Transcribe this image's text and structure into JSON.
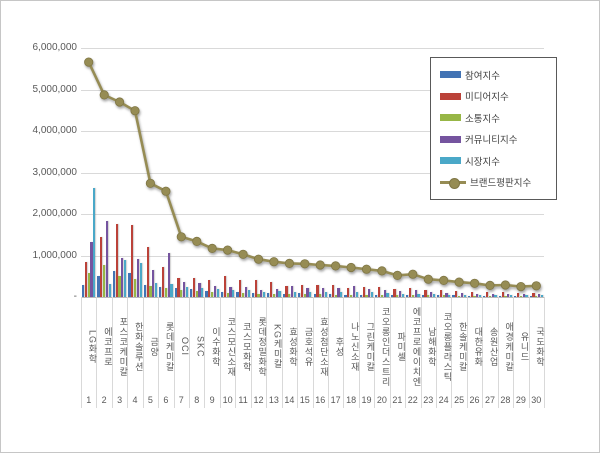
{
  "chart_data": {
    "type": "bar",
    "subtype": "grouped-bars-with-line-overlay",
    "title": "",
    "categories": [
      "LG화학",
      "에코프로",
      "포스코케미칼",
      "한화솔루션",
      "금양",
      "롯데케미칼",
      "OCI",
      "SKC",
      "이수화학",
      "코스모신소재",
      "코스모화학",
      "롯데정밀화학",
      "KG케미칼",
      "효성화학",
      "금호석유",
      "효성첨단소재",
      "후성",
      "나노신소재",
      "그린케미칼",
      "코오롱인더스트리",
      "파미셀",
      "에코프로에이치엔",
      "남해화학",
      "코오롱플라스틱",
      "한솔케미칼",
      "대한유화",
      "송원산업",
      "애경케미칼",
      "유니드",
      "국도화학"
    ],
    "ranks": [
      "1",
      "2",
      "3",
      "4",
      "5",
      "6",
      "7",
      "8",
      "9",
      "10",
      "11",
      "12",
      "13",
      "14",
      "15",
      "16",
      "17",
      "18",
      "19",
      "20",
      "21",
      "22",
      "23",
      "24",
      "25",
      "26",
      "27",
      "28",
      "29",
      "30"
    ],
    "series": [
      {
        "name": "참여지수",
        "type": "bar",
        "color": "#4273b4",
        "values": [
          280000,
          500000,
          630000,
          590000,
          300000,
          250000,
          220000,
          200000,
          150000,
          120000,
          110000,
          100000,
          90000,
          80000,
          90000,
          80000,
          70000,
          60000,
          60000,
          60000,
          50000,
          50000,
          40000,
          40000,
          40000,
          30000,
          30000,
          30000,
          20000,
          30000
        ]
      },
      {
        "name": "미디어지수",
        "type": "bar",
        "color": "#bb4239",
        "values": [
          840000,
          1450000,
          1760000,
          1740000,
          1200000,
          720000,
          470000,
          450000,
          420000,
          500000,
          400000,
          420000,
          350000,
          270000,
          300000,
          280000,
          280000,
          220000,
          240000,
          240000,
          200000,
          210000,
          170000,
          160000,
          140000,
          130000,
          110000,
          110000,
          100000,
          100000
        ]
      },
      {
        "name": "소통지수",
        "type": "bar",
        "color": "#97b646",
        "values": [
          590000,
          760000,
          500000,
          440000,
          260000,
          220000,
          160000,
          150000,
          130000,
          100000,
          100000,
          80000,
          80000,
          70000,
          80000,
          70000,
          60000,
          60000,
          60000,
          50000,
          50000,
          50000,
          40000,
          40000,
          30000,
          30000,
          30000,
          30000,
          20000,
          30000
        ]
      },
      {
        "name": "커뮤니티지수",
        "type": "bar",
        "color": "#75549f",
        "values": [
          1320000,
          1840000,
          930000,
          910000,
          640000,
          1050000,
          350000,
          330000,
          270000,
          230000,
          240000,
          180000,
          190000,
          270000,
          210000,
          220000,
          220000,
          260000,
          200000,
          180000,
          140000,
          160000,
          110000,
          100000,
          90000,
          80000,
          70000,
          80000,
          70000,
          70000
        ]
      },
      {
        "name": "시장지수",
        "type": "bar",
        "color": "#4aa8c8",
        "values": [
          2630000,
          320000,
          880000,
          810000,
          340000,
          310000,
          250000,
          210000,
          200000,
          180000,
          180000,
          130000,
          140000,
          120000,
          120000,
          120000,
          120000,
          110000,
          110000,
          100000,
          80000,
          80000,
          70000,
          60000,
          60000,
          60000,
          40000,
          40000,
          40000,
          40000
        ]
      },
      {
        "name": "브랜드평판지수",
        "type": "line",
        "color": "#968c54",
        "marker_stroke": "#7f7645",
        "values": [
          5660000,
          4870000,
          4700000,
          4490000,
          2740000,
          2550000,
          1450000,
          1340000,
          1170000,
          1130000,
          1030000,
          910000,
          850000,
          810000,
          800000,
          770000,
          750000,
          710000,
          670000,
          630000,
          520000,
          550000,
          430000,
          400000,
          360000,
          330000,
          280000,
          290000,
          250000,
          270000
        ]
      }
    ],
    "y_axis": {
      "min": 0,
      "max": 6000000,
      "tick_interval": 1000000,
      "tick_labels": [
        "-",
        "1,000,000",
        "2,000,000",
        "3,000,000",
        "4,000,000",
        "5,000,000",
        "6,000,000"
      ],
      "grid": true,
      "gridline_color": "#d9d9d9"
    },
    "legend": {
      "position": "top-right",
      "border_color": "#595959",
      "items": [
        "참여지수",
        "미디어지수",
        "소통지수",
        "커뮤니티지수",
        "시장지수",
        "브랜드평판지수"
      ]
    }
  }
}
